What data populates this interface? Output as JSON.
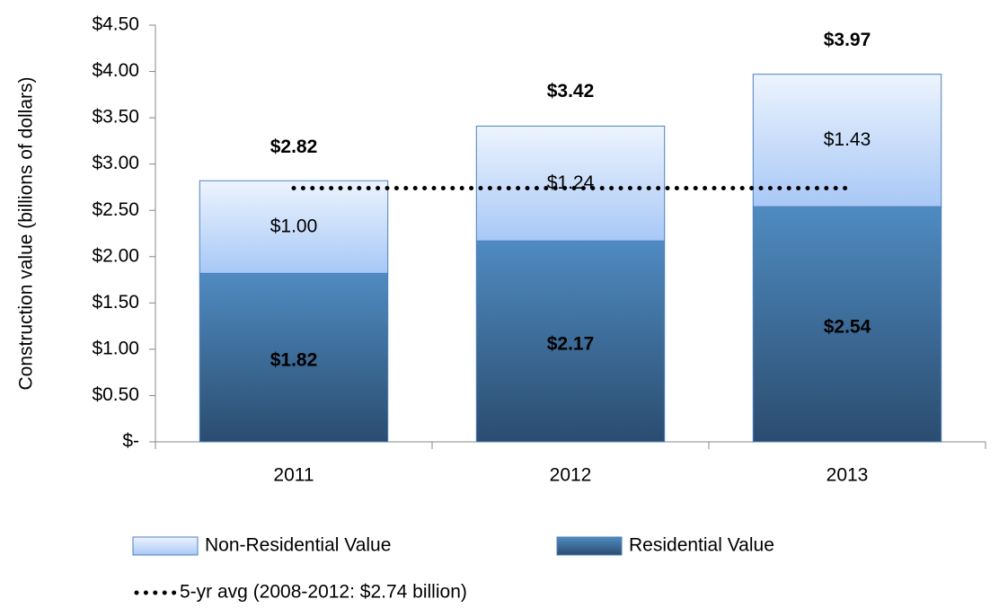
{
  "chart_data": {
    "type": "stacked-bar",
    "y_label": "Construction value (billions of dollars)",
    "categories": [
      "2011",
      "2012",
      "2013"
    ],
    "series": [
      {
        "name": "Residential Value",
        "color": "#3f72a3",
        "values": [
          1.82,
          2.17,
          2.54
        ],
        "value_labels": [
          "$1.82",
          "$2.17",
          "$2.54"
        ]
      },
      {
        "name": "Non-Residential Value",
        "color": "#c6dcfa",
        "values": [
          1.0,
          1.24,
          1.43
        ],
        "value_labels": [
          "$1.00",
          "$1.24",
          "$1.43"
        ]
      }
    ],
    "totals": [
      2.82,
      3.42,
      3.97
    ],
    "total_labels": [
      "$2.82",
      "$3.42",
      "$3.97"
    ],
    "reference_line": {
      "name": "5-yr avg (2008-2012: $2.74 billion)",
      "value": 2.74,
      "color": "#000000"
    },
    "ylim": [
      0,
      4.5
    ],
    "yticks": [
      {
        "value": 0,
        "label": "$-"
      },
      {
        "value": 0.5,
        "label": "$0.50"
      },
      {
        "value": 1,
        "label": "$1.00"
      },
      {
        "value": 1.5,
        "label": "$1.50"
      },
      {
        "value": 2,
        "label": "$2.00"
      },
      {
        "value": 2.5,
        "label": "$2.50"
      },
      {
        "value": 3,
        "label": "$3.00"
      },
      {
        "value": 3.5,
        "label": "$3.50"
      },
      {
        "value": 4,
        "label": "$4.00"
      },
      {
        "value": 4.5,
        "label": "$4.50"
      }
    ]
  }
}
